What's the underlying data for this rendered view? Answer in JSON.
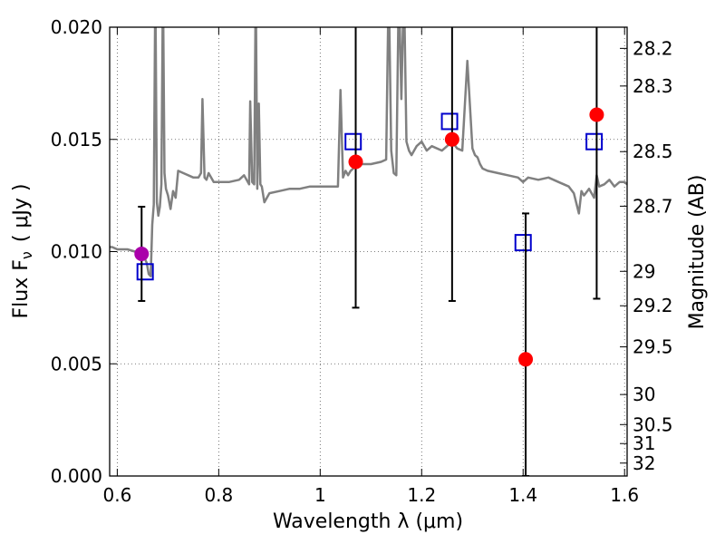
{
  "chart_data": {
    "type": "scatter",
    "xlabel": "Wavelength  λ (μm)",
    "ylabel": "Flux  F",
    "ylabel_subscript": "ν",
    "ylabel_unit": "( μJy )",
    "y2label": "Magnitude (AB)",
    "xlim": [
      0.585,
      1.605
    ],
    "ylim": [
      0.0,
      0.02
    ],
    "x_ticks": [
      0.6,
      0.8,
      1.0,
      1.2,
      1.4,
      1.6
    ],
    "x_tick_labels": [
      "0.6",
      "0.8",
      "1",
      "1.2",
      "1.4",
      "1.6"
    ],
    "y_ticks": [
      0.0,
      0.005,
      0.01,
      0.015,
      0.02
    ],
    "y_tick_labels": [
      "0.000",
      "0.005",
      "0.010",
      "0.015",
      "0.020"
    ],
    "y2_ticks": [
      "28.2",
      "28.3",
      "28.5",
      "28.7",
      "29",
      "29.2",
      "29.5",
      "30",
      "30.5",
      "31",
      "32"
    ],
    "grid": true,
    "colors": {
      "model": "#808080",
      "observed": "#ff0000",
      "model_box": "#0000cc",
      "special": "#aa00aa",
      "errorbar": "#000000",
      "grid": "#555555"
    },
    "series": [
      {
        "name": "model spectrum",
        "style": "line",
        "x": [
          0.585,
          0.59,
          0.6,
          0.62,
          0.635,
          0.645,
          0.652,
          0.658,
          0.662,
          0.666,
          0.669,
          0.672,
          0.675,
          0.678,
          0.681,
          0.684,
          0.687,
          0.69,
          0.693,
          0.696,
          0.7,
          0.705,
          0.71,
          0.715,
          0.72,
          0.73,
          0.75,
          0.76,
          0.765,
          0.768,
          0.772,
          0.776,
          0.78,
          0.79,
          0.8,
          0.82,
          0.84,
          0.85,
          0.86,
          0.862,
          0.866,
          0.87,
          0.873,
          0.876,
          0.879,
          0.882,
          0.885,
          0.89,
          0.9,
          0.92,
          0.94,
          0.96,
          0.98,
          1.0,
          1.02,
          1.035,
          1.04,
          1.045,
          1.05,
          1.055,
          1.06,
          1.065,
          1.07,
          1.075,
          1.08,
          1.1,
          1.12,
          1.13,
          1.135,
          1.14,
          1.145,
          1.15,
          1.155,
          1.16,
          1.165,
          1.17,
          1.175,
          1.18,
          1.185,
          1.19,
          1.2,
          1.21,
          1.22,
          1.24,
          1.25,
          1.26,
          1.27,
          1.28,
          1.29,
          1.3,
          1.305,
          1.31,
          1.315,
          1.32,
          1.33,
          1.35,
          1.37,
          1.39,
          1.4,
          1.41,
          1.43,
          1.45,
          1.47,
          1.49,
          1.5,
          1.51,
          1.515,
          1.52,
          1.53,
          1.54,
          1.545,
          1.55,
          1.56,
          1.57,
          1.58,
          1.59,
          1.6,
          1.605
        ],
        "values": [
          0.0102,
          0.0102,
          0.0101,
          0.0101,
          0.01,
          0.0099,
          0.0098,
          0.0095,
          0.009,
          0.0089,
          0.0112,
          0.0121,
          0.022,
          0.0122,
          0.0116,
          0.012,
          0.013,
          0.022,
          0.0135,
          0.0128,
          0.0125,
          0.0119,
          0.0127,
          0.0124,
          0.0136,
          0.0135,
          0.0133,
          0.0133,
          0.0135,
          0.0168,
          0.0133,
          0.0132,
          0.0135,
          0.0131,
          0.0131,
          0.0131,
          0.0132,
          0.0134,
          0.013,
          0.0167,
          0.0131,
          0.013,
          0.022,
          0.0128,
          0.0166,
          0.013,
          0.0129,
          0.0122,
          0.0126,
          0.0127,
          0.0128,
          0.0128,
          0.0129,
          0.0129,
          0.0129,
          0.0129,
          0.0172,
          0.0133,
          0.0136,
          0.0134,
          0.0136,
          0.0137,
          0.0139,
          0.0141,
          0.0139,
          0.0139,
          0.014,
          0.0141,
          0.022,
          0.0145,
          0.0135,
          0.0134,
          0.022,
          0.0168,
          0.022,
          0.0149,
          0.0145,
          0.0143,
          0.0145,
          0.0147,
          0.0149,
          0.0145,
          0.0147,
          0.0145,
          0.0147,
          0.0149,
          0.0146,
          0.0145,
          0.0185,
          0.0146,
          0.0143,
          0.0142,
          0.0139,
          0.0137,
          0.0136,
          0.0135,
          0.0134,
          0.0133,
          0.0131,
          0.0133,
          0.0132,
          0.0133,
          0.0131,
          0.0129,
          0.0126,
          0.0117,
          0.0127,
          0.0125,
          0.0128,
          0.0124,
          0.0134,
          0.0129,
          0.013,
          0.0132,
          0.0129,
          0.0131,
          0.0131,
          0.013
        ]
      },
      {
        "name": "model photometry",
        "style": "open-square",
        "x": [
          0.655,
          1.065,
          1.255,
          1.4,
          1.54
        ],
        "values": [
          0.0091,
          0.0149,
          0.0158,
          0.0104,
          0.0149
        ]
      },
      {
        "name": "observed photometry",
        "style": "filled-circle",
        "x": [
          1.07,
          1.26,
          1.405,
          1.545
        ],
        "values": [
          0.014,
          0.015,
          0.0052,
          0.0161
        ],
        "err_low": [
          0.0075,
          0.0078,
          0.0,
          0.0079
        ],
        "err_high": [
          0.022,
          0.022,
          0.0117,
          0.022
        ]
      },
      {
        "name": "detection",
        "style": "filled-circle",
        "x": [
          0.648
        ],
        "values": [
          0.0099
        ],
        "err_low": [
          0.0078
        ],
        "err_high": [
          0.012
        ]
      }
    ]
  }
}
